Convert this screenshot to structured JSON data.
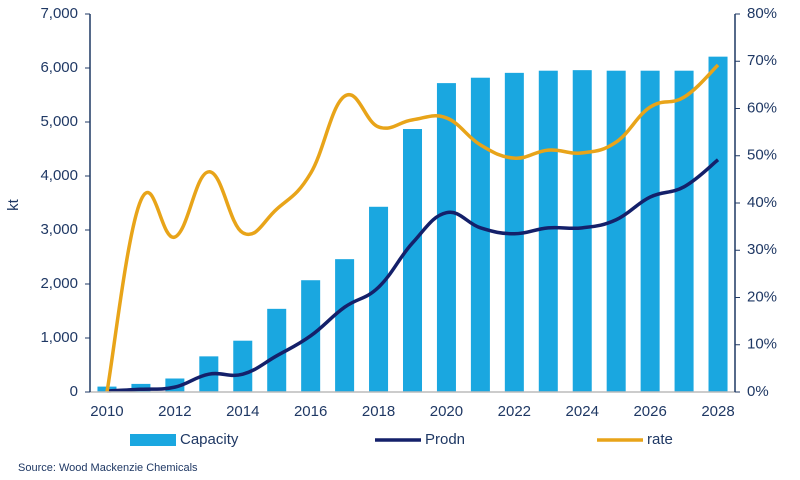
{
  "chart_data": {
    "type": "bar-line",
    "y_label": "kt",
    "source": "Source: Wood Mackenzie Chemicals",
    "categories": [
      "2010",
      null,
      "2012",
      null,
      "2014",
      null,
      "2016",
      null,
      "2018",
      null,
      "2020",
      null,
      "2022",
      null,
      "2024",
      null,
      "2026",
      null,
      "2028"
    ],
    "series": [
      {
        "name": "Capacity",
        "type": "bar",
        "color": "#1aa7e0",
        "values": [
          100,
          150,
          250,
          660,
          950,
          1540,
          2070,
          2460,
          3430,
          4870,
          5720,
          5820,
          5910,
          5950,
          5960,
          5950,
          5950,
          5950,
          6210
        ]
      },
      {
        "name": "Prodn",
        "type": "line",
        "color": "#14206a",
        "values": [
          20,
          50,
          90,
          330,
          330,
          670,
          1040,
          1570,
          1940,
          2760,
          3320,
          3040,
          2930,
          3040,
          3040,
          3190,
          3610,
          3800,
          4300
        ]
      },
      {
        "name": "rate",
        "type": "line",
        "axis": "y2",
        "color": "#e8a419",
        "values": [
          0,
          40.6,
          32.8,
          46.6,
          33.7,
          38.7,
          46.3,
          62.6,
          56.1,
          57.6,
          58,
          52.3,
          49.5,
          51.2,
          50.6,
          52.9,
          60.3,
          62.4,
          69.2
        ]
      }
    ],
    "ylim": [
      0,
      7000
    ],
    "yticks": [
      0,
      {
        "value": 1000,
        "label": "1,000"
      },
      {
        "value": 2000,
        "label": "2,000"
      },
      {
        "value": 3000,
        "label": "3,000"
      },
      {
        "value": 4000,
        "label": "4,000"
      },
      {
        "value": 5000,
        "label": "5,000"
      },
      {
        "value": 6000,
        "label": "6,000"
      },
      {
        "value": 7000,
        "label": "7,000"
      }
    ],
    "y2lim": [
      0,
      80
    ],
    "y2ticks": [
      {
        "value": 0,
        "label": "0%"
      },
      {
        "value": 10,
        "label": "10%"
      },
      {
        "value": 20,
        "label": "20%"
      },
      {
        "value": 30,
        "label": "30%"
      },
      {
        "value": 40,
        "label": "40%"
      },
      {
        "value": 50,
        "label": "50%"
      },
      {
        "value": 60,
        "label": "60%"
      },
      {
        "value": 70,
        "label": "70%"
      },
      {
        "value": 80,
        "label": "80%"
      }
    ],
    "axis_color": "#1f3864"
  }
}
